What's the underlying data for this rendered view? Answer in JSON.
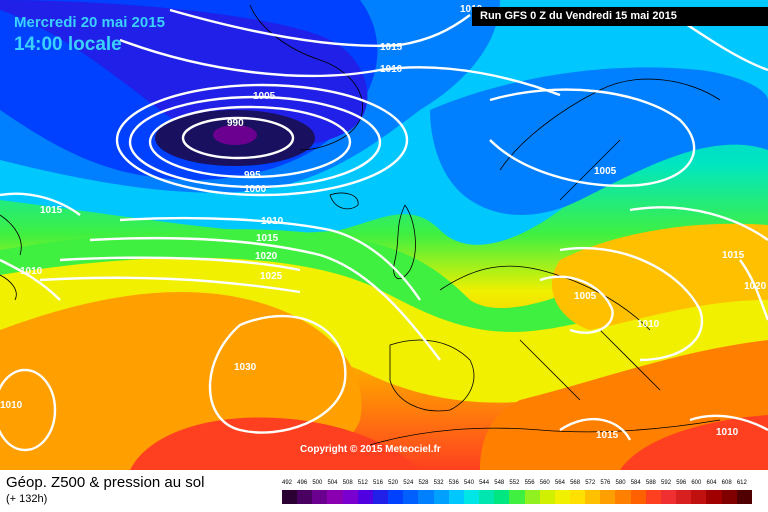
{
  "header": {
    "date": "Mercredi 20 mai 2015",
    "time": "14:00 locale",
    "run": "Run GFS 0 Z du Vendredi 15 mai 2015"
  },
  "copyright": "Copyright © 2015 Meteociel.fr",
  "footer": {
    "title": "Géop. Z500 & pression au sol",
    "subtitle": "(+ 132h)"
  },
  "isobar_labels": [
    "1015",
    "1010",
    "1005",
    "990",
    "995",
    "1000",
    "1015",
    "1010",
    "1015",
    "1020",
    "1025",
    "1010",
    "1030",
    "1010",
    "1005",
    "1005",
    "1010",
    "1015",
    "1020",
    "1015",
    "1010",
    "1010"
  ],
  "scale": {
    "ticks": [
      "492",
      "496",
      "500",
      "504",
      "508",
      "512",
      "516",
      "520",
      "524",
      "528",
      "532",
      "536",
      "540",
      "544",
      "548",
      "552",
      "556",
      "560",
      "564",
      "568",
      "572",
      "576",
      "580",
      "584",
      "588",
      "592",
      "596",
      "600",
      "604",
      "608",
      "612"
    ],
    "colors": [
      "#2b0033",
      "#4a0060",
      "#6b0090",
      "#8a00b0",
      "#7a00d0",
      "#5000e0",
      "#2020e8",
      "#0040ff",
      "#0060ff",
      "#0080ff",
      "#00a0ff",
      "#00c8ff",
      "#00e6e6",
      "#00e6b0",
      "#00e680",
      "#40f040",
      "#90f020",
      "#d0f000",
      "#f0f000",
      "#ffe000",
      "#ffc000",
      "#ffa000",
      "#ff8000",
      "#ff6000",
      "#ff4020",
      "#f03030",
      "#d82020",
      "#c01010",
      "#a00000",
      "#800000",
      "#500000"
    ]
  }
}
